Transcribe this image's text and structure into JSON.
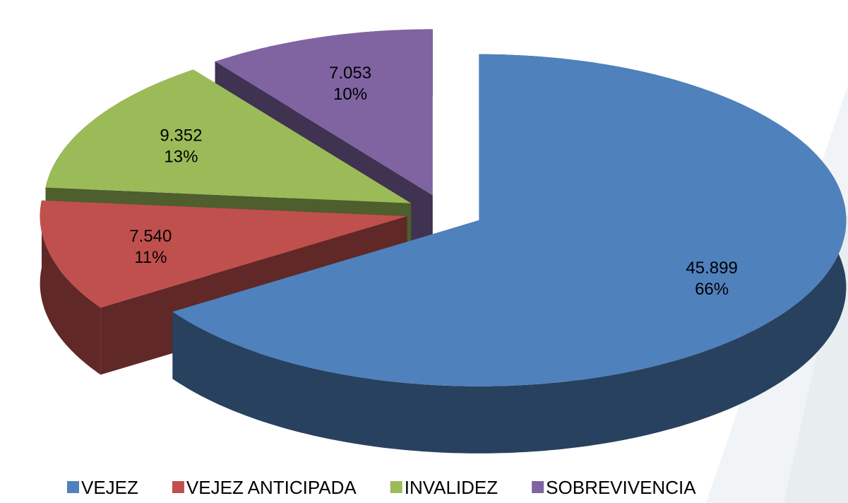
{
  "chart_data": {
    "type": "pie",
    "categories": [
      "VEJEZ",
      "VEJEZ ANTICIPADA",
      "INVALIDEZ",
      "SOBREVIVENCIA"
    ],
    "values": [
      45899,
      7540,
      9352,
      7053
    ],
    "value_labels": [
      "45.899",
      "7.540",
      "9.352",
      "7.053"
    ],
    "percentages": [
      66,
      11,
      13,
      10
    ],
    "percentage_labels": [
      "66%",
      "11%",
      "13%",
      "10%"
    ],
    "colors": [
      "#4f81bd",
      "#c0504d",
      "#9bbb59",
      "#8064a2"
    ],
    "legend": "bottom"
  }
}
